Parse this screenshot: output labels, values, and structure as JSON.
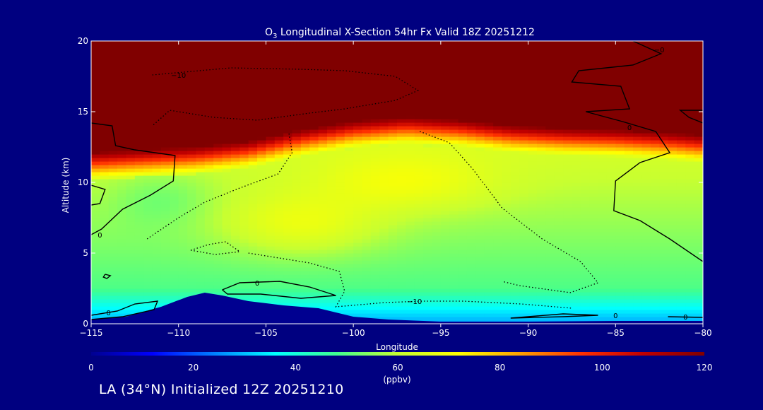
{
  "chart_data": {
    "type": "heatmap",
    "title_species": "O",
    "title_subscript": "3",
    "title_rest": " Longitudinal X-Section 54hr  Fx Valid 18Z 20251212",
    "xlabel": "Longitude",
    "ylabel": "Altitude (km)",
    "xlim": [
      -115,
      -80
    ],
    "ylim": [
      0,
      20
    ],
    "xticks": [
      -115,
      -110,
      -105,
      -100,
      -95,
      -90,
      -85,
      -80
    ],
    "xtick_labels": [
      "−115",
      "−110",
      "−105",
      "−100",
      "−95",
      "−90",
      "−85",
      "−80"
    ],
    "yticks": [
      0,
      5,
      10,
      15,
      20
    ],
    "ytick_labels": [
      "0",
      "5",
      "10",
      "15",
      "20"
    ],
    "colorbar": {
      "range": [
        0,
        120
      ],
      "ticks": [
        0,
        20,
        40,
        60,
        80,
        100,
        120
      ],
      "tick_labels": [
        "0",
        "20",
        "40",
        "60",
        "80",
        "100",
        "120"
      ],
      "units": "(ppbv)",
      "colors": [
        "#000090",
        "#0000ff",
        "#0080ff",
        "#00ffff",
        "#40ff90",
        "#c8ff30",
        "#ffff00",
        "#ffa000",
        "#ff3000",
        "#c00000",
        "#800000"
      ]
    },
    "tropopause_height_km": [
      [
        -115,
        11.8
      ],
      [
        -112,
        12.0
      ],
      [
        -109,
        12.2
      ],
      [
        -106,
        12.6
      ],
      [
        -103,
        13.4
      ],
      [
        -100,
        14.0
      ],
      [
        -97,
        14.3
      ],
      [
        -94,
        14.1
      ],
      [
        -91,
        13.7
      ],
      [
        -88,
        13.5
      ],
      [
        -85,
        13.4
      ],
      [
        -82,
        13.2
      ],
      [
        -80,
        13.0
      ]
    ],
    "terrain_km": [
      [
        -115,
        0.3
      ],
      [
        -113,
        0.5
      ],
      [
        -111,
        1.2
      ],
      [
        -109.5,
        1.9
      ],
      [
        -108.5,
        2.2
      ],
      [
        -107.5,
        2.0
      ],
      [
        -106,
        1.6
      ],
      [
        -104,
        1.3
      ],
      [
        -102,
        1.1
      ],
      [
        -100,
        0.5
      ],
      [
        -98,
        0.3
      ],
      [
        -95,
        0.15
      ],
      [
        -90,
        0.15
      ],
      [
        -85,
        0.2
      ],
      [
        -80,
        0.2
      ]
    ],
    "contour_labels": [
      {
        "text": "−10",
        "lon": -110.0,
        "alt": 17.6
      },
      {
        "text": "−0",
        "lon": -82.5,
        "alt": 19.4
      },
      {
        "text": "0",
        "lon": -84.2,
        "alt": 13.9
      },
      {
        "text": "0",
        "lon": -114.5,
        "alt": 6.3
      },
      {
        "text": "0",
        "lon": -105.5,
        "alt": 2.9
      },
      {
        "text": "−10",
        "lon": -96.5,
        "alt": 1.6
      },
      {
        "text": "0",
        "lon": -114.0,
        "alt": 0.8
      },
      {
        "text": "0",
        "lon": -85.0,
        "alt": 0.6
      },
      {
        "text": "0",
        "lon": -81.0,
        "alt": 0.5
      }
    ]
  },
  "footer": {
    "text": "LA (34°N) Initialized 12Z 20251210"
  }
}
